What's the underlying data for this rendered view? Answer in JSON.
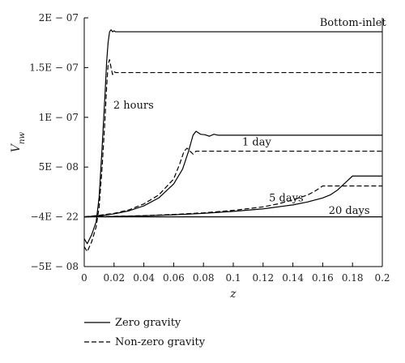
{
  "chart_data": {
    "type": "line",
    "xlabel": "z",
    "ylabel": "Vnw",
    "xlim": [
      0,
      0.2
    ],
    "ylim": [
      -5e-08,
      2e-07
    ],
    "grid": false,
    "x_ticks": [
      {
        "value": 0,
        "label": "0"
      },
      {
        "value": 0.02,
        "label": "0.02"
      },
      {
        "value": 0.04,
        "label": "0.04"
      },
      {
        "value": 0.06,
        "label": "0.06"
      },
      {
        "value": 0.08,
        "label": "0.08"
      },
      {
        "value": 0.1,
        "label": "0.1"
      },
      {
        "value": 0.12,
        "label": "0.12"
      },
      {
        "value": 0.14,
        "label": "0.14"
      },
      {
        "value": 0.16,
        "label": "0.16"
      },
      {
        "value": 0.18,
        "label": "0.18"
      },
      {
        "value": 0.2,
        "label": "0.2"
      }
    ],
    "y_ticks": [
      {
        "value": 2e-07,
        "label": "2E − 07"
      },
      {
        "value": 1.5e-07,
        "label": "1.5E − 07"
      },
      {
        "value": 1e-07,
        "label": "1E − 07"
      },
      {
        "value": 5e-08,
        "label": "5E − 08"
      },
      {
        "value": 0,
        "label": "−4E − 22"
      },
      {
        "value": -5e-08,
        "label": "−5E − 08"
      }
    ],
    "legend": {
      "placement": "below",
      "entries": [
        {
          "label": "Zero gravity",
          "style": "solid"
        },
        {
          "label": "Non-zero gravity",
          "style": "dashed"
        }
      ]
    },
    "annotations": [
      {
        "text": "Bottom-inlet",
        "x": 0.158,
        "y": 1.95e-07
      },
      {
        "text": "2 hours",
        "x": 0.0195,
        "y": 1.12e-07
      },
      {
        "text": "1 day",
        "x": 0.106,
        "y": 7.5e-08
      },
      {
        "text": "5 days",
        "x": 0.124,
        "y": 1.9e-08
      },
      {
        "text": "20 days",
        "x": 0.164,
        "y": 6e-09
      }
    ],
    "series": [
      {
        "group": "2 hours",
        "style": "solid",
        "x": [
          0,
          0.002,
          0.005,
          0.008,
          0.01,
          0.012,
          0.014,
          0.015,
          0.016,
          0.017,
          0.018,
          0.019,
          0.02,
          0.021,
          0.022,
          0.03,
          0.06,
          0.1,
          0.15,
          0.2
        ],
        "y": [
          -2.2e-08,
          -2.7e-08,
          -1.8e-08,
          -5e-09,
          2e-08,
          7e-08,
          1.25e-07,
          1.55e-07,
          1.75e-07,
          1.86e-07,
          1.88e-07,
          1.86e-07,
          1.87e-07,
          1.86e-07,
          1.86e-07,
          1.86e-07,
          1.86e-07,
          1.86e-07,
          1.86e-07,
          1.86e-07
        ]
      },
      {
        "group": "2 hours",
        "style": "dashed",
        "x": [
          0,
          0.002,
          0.005,
          0.008,
          0.01,
          0.012,
          0.014,
          0.015,
          0.016,
          0.017,
          0.018,
          0.019,
          0.02,
          0.021,
          0.022,
          0.03,
          0.06,
          0.1,
          0.15,
          0.2
        ],
        "y": [
          -3e-08,
          -3.5e-08,
          -2.5e-08,
          -1e-08,
          1e-08,
          5e-08,
          1e-07,
          1.3e-07,
          1.53e-07,
          1.58e-07,
          1.5e-07,
          1.43e-07,
          1.46e-07,
          1.45e-07,
          1.45e-07,
          1.45e-07,
          1.45e-07,
          1.45e-07,
          1.45e-07,
          1.45e-07
        ]
      },
      {
        "group": "1 day",
        "style": "solid",
        "x": [
          0,
          0.01,
          0.02,
          0.03,
          0.04,
          0.05,
          0.06,
          0.066,
          0.07,
          0.073,
          0.075,
          0.078,
          0.081,
          0.084,
          0.087,
          0.09,
          0.1,
          0.15,
          0.2
        ],
        "y": [
          0,
          1e-09,
          3e-09,
          6e-09,
          1.1e-08,
          1.9e-08,
          3.3e-08,
          4.8e-08,
          6.6e-08,
          8.2e-08,
          8.6e-08,
          8.3e-08,
          8.25e-08,
          8.1e-08,
          8.3e-08,
          8.2e-08,
          8.2e-08,
          8.2e-08,
          8.2e-08
        ]
      },
      {
        "group": "1 day",
        "style": "dashed",
        "x": [
          0,
          0.01,
          0.02,
          0.03,
          0.04,
          0.05,
          0.06,
          0.064,
          0.067,
          0.069,
          0.071,
          0.073,
          0.075,
          0.08,
          0.1,
          0.15,
          0.2
        ],
        "y": [
          0,
          1.5e-09,
          3.5e-09,
          7e-09,
          1.3e-08,
          2.2e-08,
          3.8e-08,
          5.3e-08,
          6.6e-08,
          6.9e-08,
          6.6e-08,
          6.3e-08,
          6.6e-08,
          6.6e-08,
          6.6e-08,
          6.6e-08,
          6.6e-08
        ]
      },
      {
        "group": "5 days",
        "style": "solid",
        "x": [
          0,
          0.02,
          0.04,
          0.06,
          0.08,
          0.1,
          0.12,
          0.14,
          0.15,
          0.16,
          0.165,
          0.17,
          0.175,
          0.18,
          0.19,
          0.2
        ],
        "y": [
          0,
          4e-10,
          1e-09,
          2e-09,
          3.5e-09,
          5.5e-09,
          8e-09,
          1.2e-08,
          1.5e-08,
          1.9e-08,
          2.2e-08,
          2.7e-08,
          3.4e-08,
          4.1e-08,
          4.1e-08,
          4.1e-08
        ]
      },
      {
        "group": "5 days",
        "style": "dashed",
        "x": [
          0,
          0.02,
          0.04,
          0.06,
          0.08,
          0.1,
          0.12,
          0.13,
          0.14,
          0.15,
          0.155,
          0.16,
          0.17,
          0.18,
          0.19,
          0.2
        ],
        "y": [
          0,
          5e-10,
          1.2e-09,
          2.4e-09,
          4e-09,
          6.5e-09,
          1e-08,
          1.3e-08,
          1.7e-08,
          2.2e-08,
          2.6e-08,
          3.1e-08,
          3.1e-08,
          3.1e-08,
          3.1e-08,
          3.1e-08
        ]
      },
      {
        "group": "20 days",
        "style": "solid",
        "x": [
          0,
          0.05,
          0.1,
          0.15,
          0.2
        ],
        "y": [
          0,
          0,
          0,
          0,
          0
        ]
      }
    ]
  }
}
